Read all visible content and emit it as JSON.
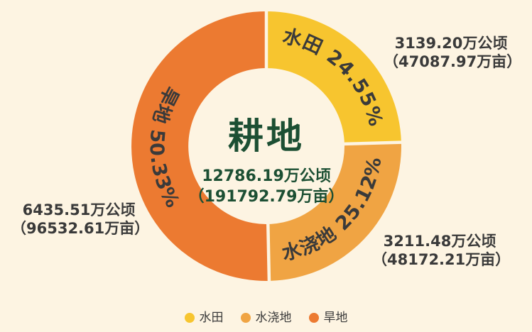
{
  "colors": {
    "background": "#FDF4E2",
    "center_text": "#1C4F33",
    "annotation_text": "#3A3A3A",
    "arc_label_text": "#3A3A3A",
    "legend_text": "#3A3A3A"
  },
  "chart_data": {
    "type": "pie",
    "subtype": "donut",
    "title": "耕地",
    "center_total": {
      "line1": "12786.19万公顷",
      "line2": "（191792.79万亩）"
    },
    "legend_position": "bottom-center",
    "segments": [
      {
        "name": "水田",
        "percent": 24.55,
        "arc_label": "水田 24.55%",
        "color": "#F7C52F",
        "annotation_line1": "3139.20万公顷",
        "annotation_line2": "（47087.97万亩）"
      },
      {
        "name": "水浇地",
        "percent": 25.12,
        "arc_label": "水浇地 25.12%",
        "color": "#F0A443",
        "annotation_line1": "3211.48万公顷",
        "annotation_line2": "（48172.21万亩）"
      },
      {
        "name": "旱地",
        "percent": 50.33,
        "arc_label": "旱地 50.33%",
        "color": "#EC7A31",
        "annotation_line1": "6435.51万公顷",
        "annotation_line2": "（96532.61万亩）"
      }
    ]
  }
}
